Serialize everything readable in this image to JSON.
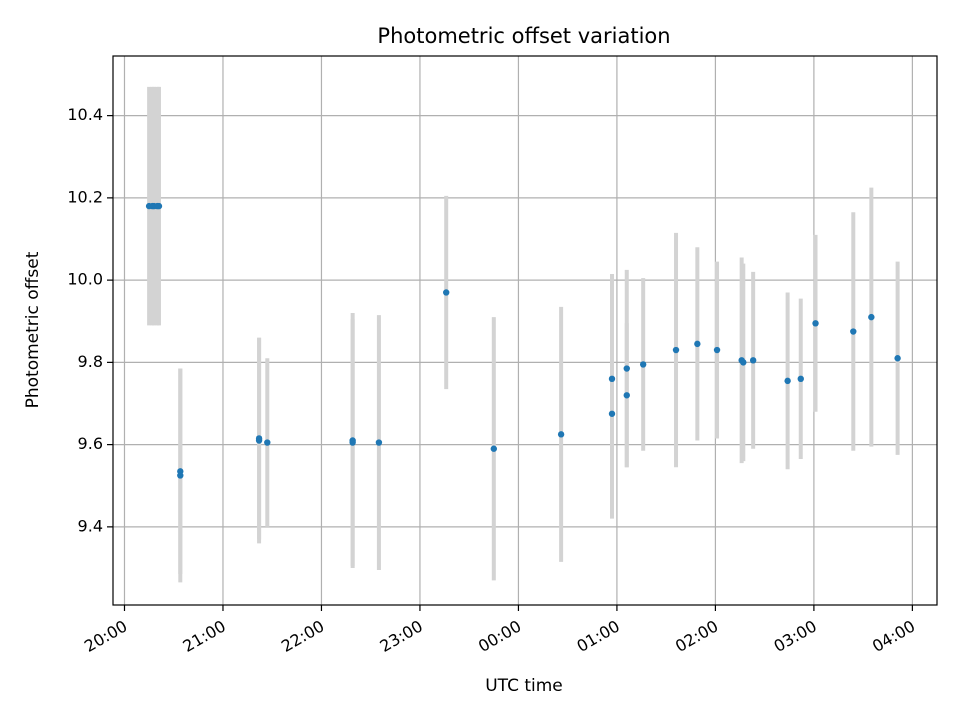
{
  "chart_data": {
    "type": "scatter",
    "title": "Photometric offset variation",
    "xlabel": "UTC time",
    "ylabel": "Photometric offset",
    "xlim": [
      "19:53",
      "04:15"
    ],
    "ylim": [
      9.21,
      10.545
    ],
    "grid": true,
    "x_tick_labels": [
      "20:00",
      "21:00",
      "22:00",
      "23:00",
      "00:00",
      "01:00",
      "02:00",
      "03:00",
      "04:00"
    ],
    "y_tick_labels": [
      "9.4",
      "9.6",
      "9.8",
      "10.0",
      "10.2",
      "10.4"
    ],
    "errorbar_color": "#d3d3d3",
    "marker_color": "#1f77b4",
    "points": [
      {
        "time": "20:15",
        "y": 10.18,
        "yerr": 0.29
      },
      {
        "time": "20:17",
        "y": 10.18,
        "yerr": 0.29
      },
      {
        "time": "20:18",
        "y": 10.18,
        "yerr": 0.29
      },
      {
        "time": "20:20",
        "y": 10.18,
        "yerr": 0.29
      },
      {
        "time": "20:21",
        "y": 10.18,
        "yerr": 0.29
      },
      {
        "time": "20:34",
        "y": 9.535,
        "yerr": 0.25
      },
      {
        "time": "20:34",
        "y": 9.525,
        "yerr": 0.26
      },
      {
        "time": "21:22",
        "y": 9.61,
        "yerr": 0.25
      },
      {
        "time": "21:22",
        "y": 9.615,
        "yerr": 0.245
      },
      {
        "time": "21:27",
        "y": 9.605,
        "yerr": 0.205
      },
      {
        "time": "22:19",
        "y": 9.61,
        "yerr": 0.31
      },
      {
        "time": "22:19",
        "y": 9.605,
        "yerr": 0.3
      },
      {
        "time": "22:35",
        "y": 9.605,
        "yerr": 0.31
      },
      {
        "time": "23:16",
        "y": 9.97,
        "yerr": 0.235
      },
      {
        "time": "23:45",
        "y": 9.59,
        "yerr": 0.32
      },
      {
        "time": "00:26",
        "y": 9.625,
        "yerr": 0.31
      },
      {
        "time": "00:57",
        "y": 9.675,
        "yerr": 0.255
      },
      {
        "time": "00:57",
        "y": 9.76,
        "yerr": 0.255
      },
      {
        "time": "01:06",
        "y": 9.72,
        "yerr": 0.175
      },
      {
        "time": "01:06",
        "y": 9.785,
        "yerr": 0.24
      },
      {
        "time": "01:16",
        "y": 9.795,
        "yerr": 0.21
      },
      {
        "time": "01:36",
        "y": 9.83,
        "yerr": 0.285
      },
      {
        "time": "01:49",
        "y": 9.845,
        "yerr": 0.235
      },
      {
        "time": "02:01",
        "y": 9.83,
        "yerr": 0.215
      },
      {
        "time": "02:16",
        "y": 9.805,
        "yerr": 0.25
      },
      {
        "time": "02:17",
        "y": 9.8,
        "yerr": 0.24
      },
      {
        "time": "02:23",
        "y": 9.805,
        "yerr": 0.215
      },
      {
        "time": "02:44",
        "y": 9.755,
        "yerr": 0.215
      },
      {
        "time": "02:52",
        "y": 9.76,
        "yerr": 0.195
      },
      {
        "time": "03:01",
        "y": 9.895,
        "yerr": 0.215
      },
      {
        "time": "03:24",
        "y": 9.875,
        "yerr": 0.29
      },
      {
        "time": "03:35",
        "y": 9.91,
        "yerr": 0.315
      },
      {
        "time": "03:51",
        "y": 9.81,
        "yerr": 0.235
      }
    ]
  }
}
